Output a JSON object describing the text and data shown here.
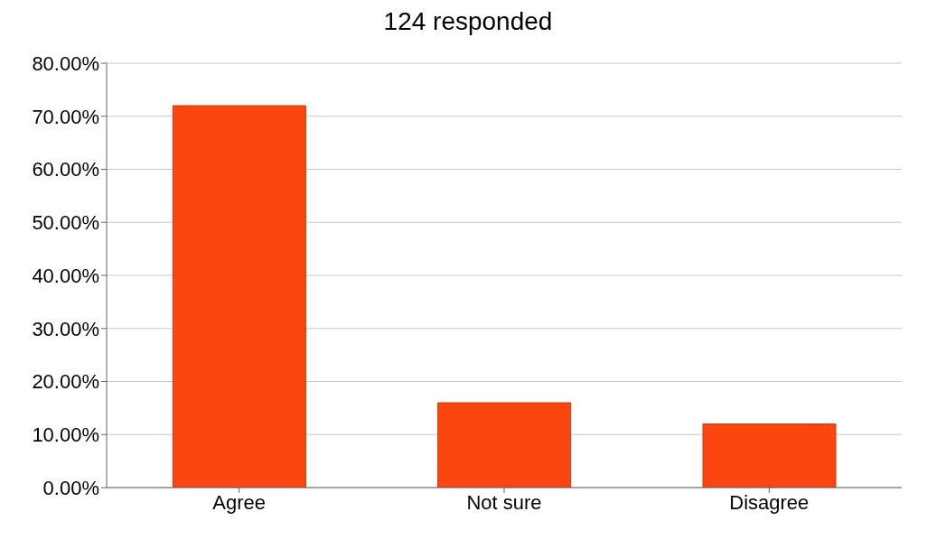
{
  "chart_data": {
    "type": "bar",
    "title": "124 responded",
    "categories": [
      "Agree",
      "Not sure",
      "Disagree"
    ],
    "values": [
      72,
      16,
      12
    ],
    "color": "#fc4610",
    "ylim": [
      0,
      80
    ],
    "yticks": [
      {
        "value": 0,
        "label": "0.00%"
      },
      {
        "value": 10,
        "label": "10.00%"
      },
      {
        "value": 20,
        "label": "20.00%"
      },
      {
        "value": 30,
        "label": "30.00%"
      },
      {
        "value": 40,
        "label": "40.00%"
      },
      {
        "value": 50,
        "label": "50.00%"
      },
      {
        "value": 60,
        "label": "60.00%"
      },
      {
        "value": 70,
        "label": "70.00%"
      },
      {
        "value": 80,
        "label": "80.00%"
      }
    ],
    "grid": "y"
  }
}
